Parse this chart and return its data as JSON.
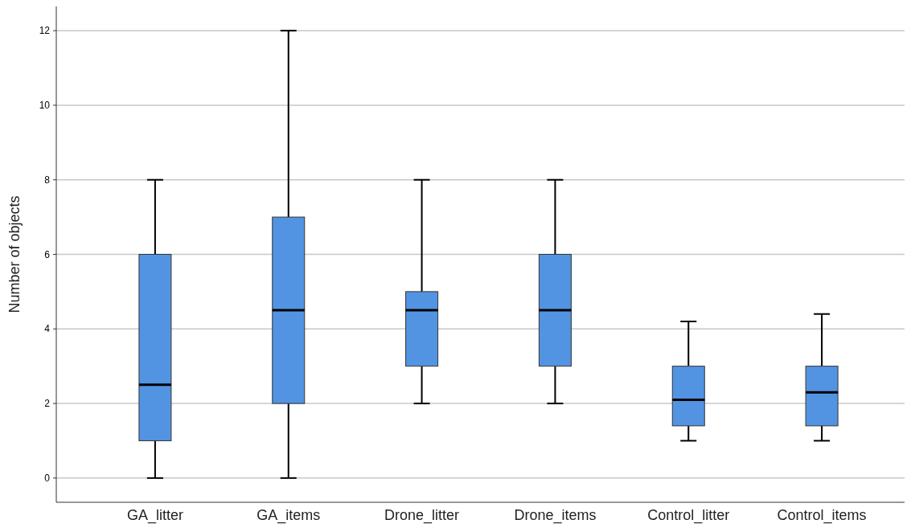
{
  "chart_data": {
    "type": "box",
    "ylabel": "Number of objects",
    "categories": [
      "GA_litter",
      "GA_items",
      "Drone_litter",
      "Drone_items",
      "Control_litter",
      "Control_items"
    ],
    "boxes": [
      {
        "low": 0,
        "q1": 1,
        "median": 2.5,
        "q3": 6,
        "high": 8
      },
      {
        "low": 0,
        "q1": 2,
        "median": 4.5,
        "q3": 7,
        "high": 12
      },
      {
        "low": 2,
        "q1": 3,
        "median": 4.5,
        "q3": 5,
        "high": 8
      },
      {
        "low": 2,
        "q1": 3,
        "median": 4.5,
        "q3": 6,
        "high": 8
      },
      {
        "low": 1,
        "q1": 1.4,
        "median": 2.1,
        "q3": 3,
        "high": 4.2
      },
      {
        "low": 1,
        "q1": 1.4,
        "median": 2.3,
        "q3": 3,
        "high": 4.4
      }
    ],
    "color": "#5294e2",
    "ylim": [
      -0.65,
      12.65
    ],
    "yticks": [
      0,
      2,
      4,
      6,
      8,
      10,
      12
    ],
    "grid": "y"
  }
}
